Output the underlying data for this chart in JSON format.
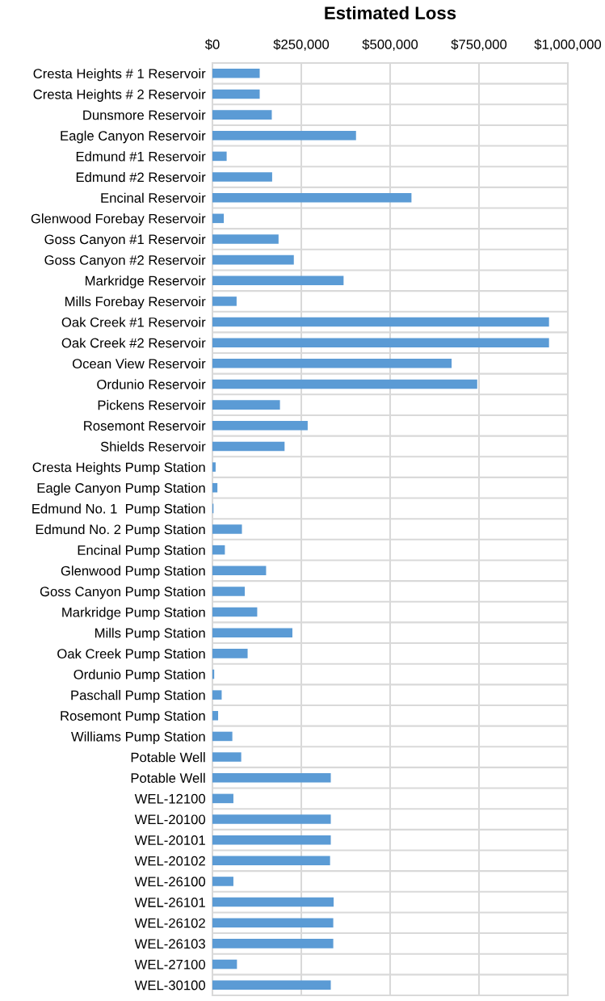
{
  "chart_data": {
    "type": "bar",
    "orientation": "horizontal",
    "title": "Estimated Loss",
    "categories": [
      "Cresta Heights # 1 Reservoir",
      "Cresta Heights # 2 Reservoir",
      "Dunsmore Reservoir",
      "Eagle Canyon Reservoir",
      "Edmund #1 Reservoir",
      "Edmund #2 Reservoir",
      "Encinal Reservoir",
      "Glenwood Forebay Reservoir",
      "Goss Canyon #1 Reservoir",
      "Goss Canyon #2 Reservoir",
      "Markridge Reservoir",
      "Mills Forebay Reservoir",
      "Oak Creek #1 Reservoir",
      "Oak Creek #2 Reservoir",
      "Ocean View Reservoir",
      "Ordunio Reservoir",
      "Pickens Reservoir",
      "Rosemont Reservoir",
      "Shields Reservoir",
      "Cresta Heights Pump Station",
      "Eagle Canyon Pump Station",
      "Edmund No. 1  Pump Station",
      "Edmund No. 2 Pump Station",
      "Encinal Pump Station",
      "Glenwood Pump Station",
      "Goss Canyon Pump Station",
      "Markridge Pump Station",
      "Mills Pump Station",
      "Oak Creek Pump Station",
      "Ordunio Pump Station",
      "Paschall Pump Station",
      "Rosemont Pump Station",
      "Williams Pump Station",
      "Potable Well",
      "Potable Well",
      "WEL-12100",
      "WEL-20100",
      "WEL-20101",
      "WEL-20102",
      "WEL-26100",
      "WEL-26101",
      "WEL-26102",
      "WEL-26103",
      "WEL-27100",
      "WEL-30100"
    ],
    "values": [
      133000,
      133000,
      167000,
      404000,
      40000,
      168000,
      560000,
      32000,
      186000,
      229000,
      369000,
      68000,
      947000,
      947000,
      673000,
      745000,
      190000,
      268000,
      203000,
      9000,
      14000,
      3000,
      83000,
      35000,
      151000,
      91000,
      126000,
      225000,
      99000,
      5000,
      26000,
      16000,
      56000,
      81000,
      333000,
      59000,
      333000,
      333000,
      331000,
      59000,
      341000,
      340000,
      340000,
      69000,
      333000
    ],
    "color": "#5b9bd5",
    "xlim": [
      0,
      1000000
    ],
    "xticks": [
      {
        "value": 0,
        "label": "$0"
      },
      {
        "value": 250000,
        "label": "$250,000"
      },
      {
        "value": 500000,
        "label": "$500,000"
      },
      {
        "value": 750000,
        "label": "$750,000"
      },
      {
        "value": 1000000,
        "label": "$1,000,000"
      }
    ],
    "grid": true
  }
}
